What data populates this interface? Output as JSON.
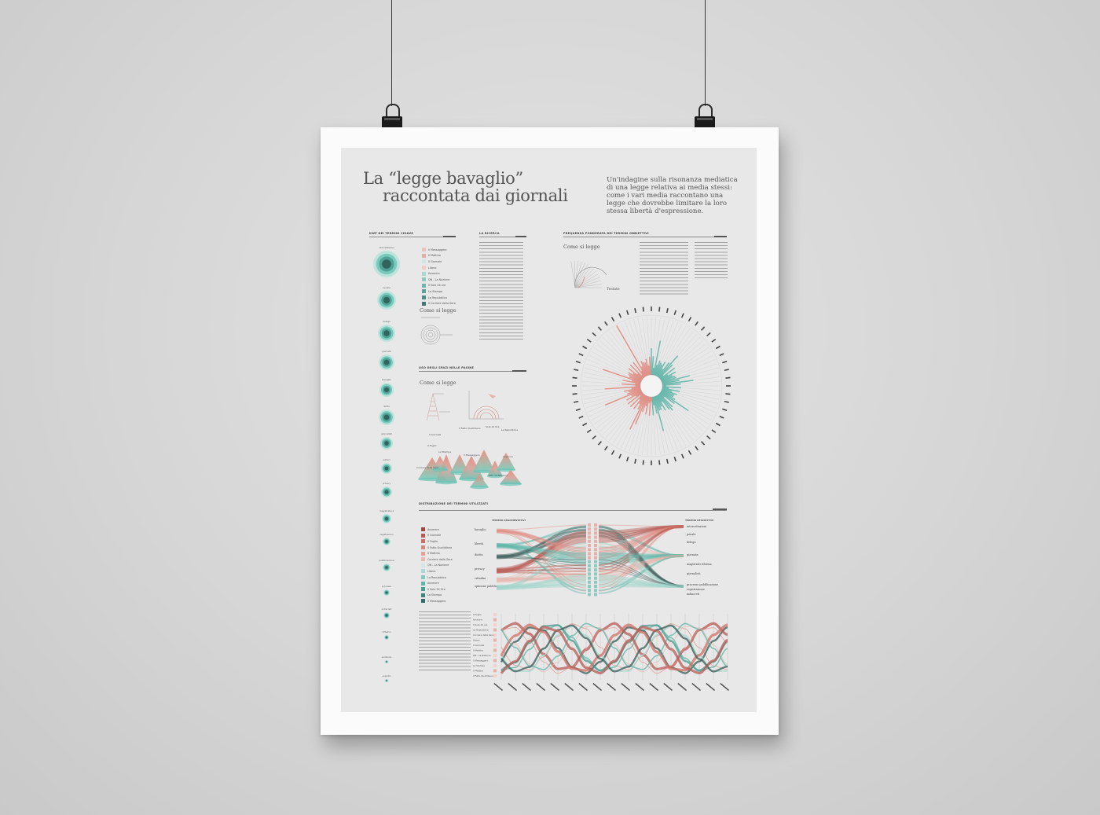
{
  "poster": {
    "title_line1": "La “legge bavaglio”",
    "title_line2": "raccontata dai giornali",
    "intro": "Un'indagine sulla risonanza mediatica di una legge relativa ai media stessi: come i vari media raccontano una legge che dovrebbe limitare la loro stessa libertà d'espressione."
  },
  "sections": {
    "kwp": "KWP DEI TERMINI CHIAVE",
    "ricerca": "LA RICERCA",
    "frequenza": "FREQUENZA PONDERATA DEI TERMINI OBBIETTIVI",
    "spazi": "USO DEGLI SPAZI NELLE PAGINE",
    "distribuzione": "DISTRIBUZIONE DEI TERMINI UTILIZZATI"
  },
  "labels": {
    "come_si_legge": "Come si legge",
    "testate": "Testate",
    "termini_argomentativi": "TERMINI ARGOMENTATIVI",
    "termini_descrittivi": "TERMINI DESCRITTIVI"
  },
  "newspapers_top": [
    "Il Messaggero",
    "Il Mattino",
    "Il Giornale",
    "Libero",
    "Avvenire",
    "QN - La Nazione",
    "Il Sole 24 ore",
    "La Stampa",
    "La Repubblica",
    "Il Corriere della Sera"
  ],
  "newspapers_dist": [
    "Avvenire",
    "Il Giornale",
    "Il Foglio",
    "Il Fatto Quotidiano",
    "Il Mattino",
    "Corriere della Sera",
    "QN - La Nazione",
    "Libero",
    "La Repubblica",
    "Avvenire",
    "Il Sole 24 Ore",
    "La Stampa",
    "Il Messaggero"
  ],
  "cone_labels": [
    "Il Giornale",
    "Il Fatto Quotidiano",
    "Sole 24 Ore",
    "La Repubblica",
    "Il Foglio",
    "La Stampa",
    "Il Messaggero",
    "Corriere della Sera",
    "Avvenire",
    "QN - La Nazione"
  ],
  "arg_terms": [
    "bavaglio",
    "libertà",
    "diritto",
    "privacy",
    "cittadini",
    "opinione pubblica"
  ],
  "desc_terms": [
    "intercettazioni",
    "penale",
    "delega",
    "giornata",
    "magistrati riforma",
    "giornalisti",
    "processo pubblicazione",
    "registrazione",
    "indiscreti"
  ],
  "kwp_terms": [
    "intercettazioni",
    "penale",
    "delega",
    "giornata",
    "bavaglio",
    "diritto",
    "giornalisti",
    "editori",
    "privacy",
    "magistratura",
    "registrazioni",
    "pubblicazione",
    "processo",
    "indiscreti",
    "cittadini",
    "sentenze",
    "esposto"
  ],
  "colors": {
    "teal": "#5fb5a8",
    "salmon": "#e08a80",
    "dark": "#3a5c58",
    "red": "#b85b55"
  }
}
